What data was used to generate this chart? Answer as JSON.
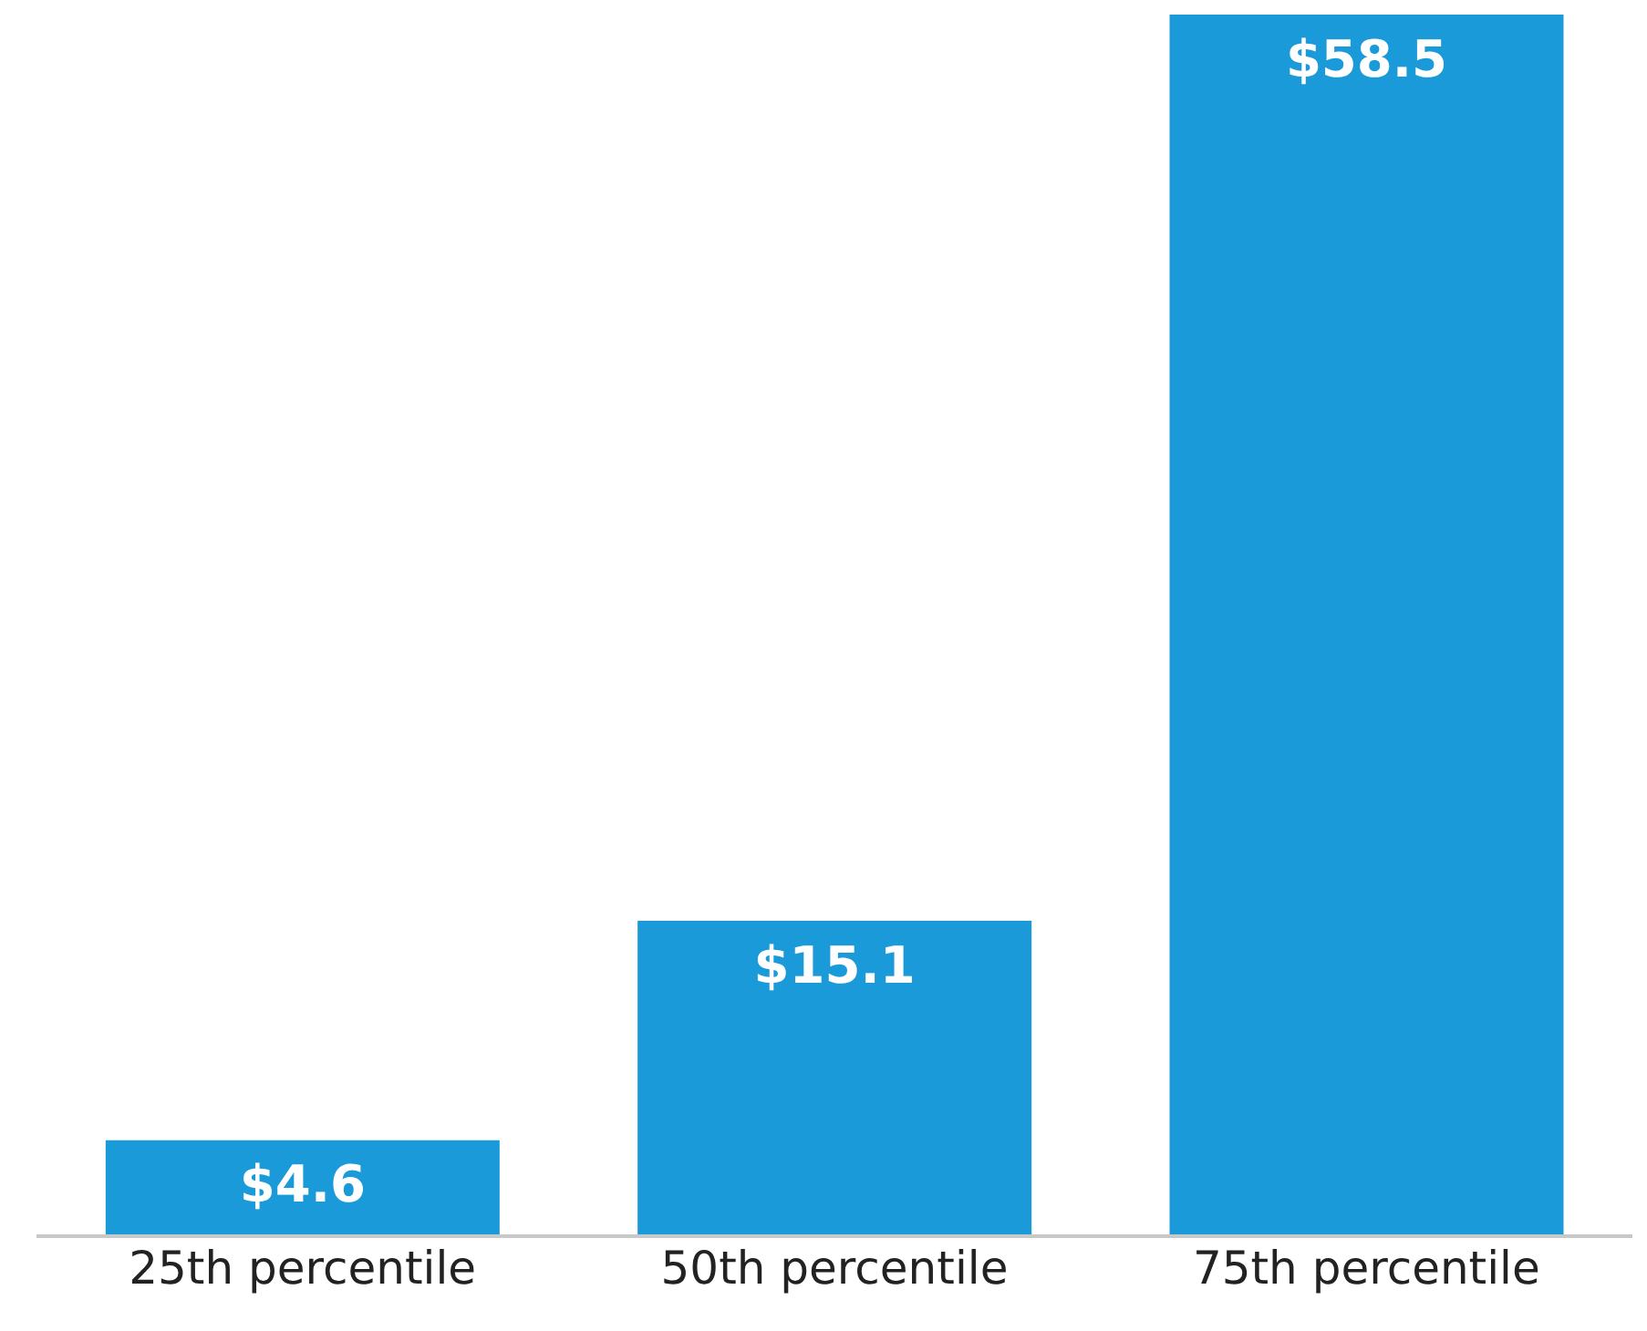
{
  "chart_data": {
    "type": "bar",
    "categories": [
      "25th percentile",
      "50th percentile",
      "75th percentile"
    ],
    "values": [
      4.6,
      15.1,
      58.5
    ],
    "color": "#1a9ad9",
    "value_labels": [
      "$4.6",
      "$15.1",
      "$58.5"
    ]
  }
}
